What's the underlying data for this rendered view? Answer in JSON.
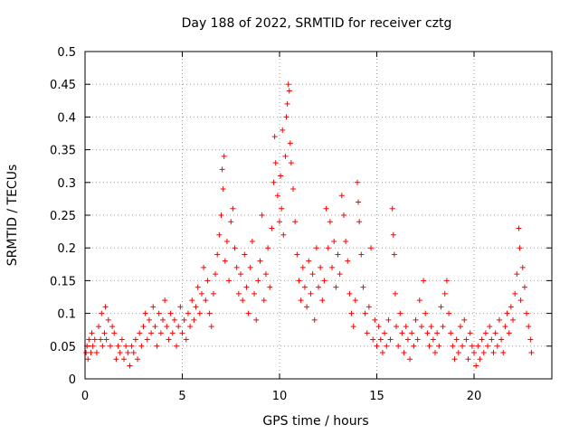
{
  "chart_data": {
    "type": "scatter",
    "title": "Day 188 of 2022, SRMTID for receiver cztg",
    "xlabel": "GPS time / hours",
    "ylabel": "SRMTID / TECUs",
    "xlim": [
      0,
      24
    ],
    "ylim": [
      0,
      0.5
    ],
    "xticks": [
      0,
      5,
      10,
      15,
      20
    ],
    "yticks": [
      0,
      0.05,
      0.1,
      0.15,
      0.2,
      0.25,
      0.3,
      0.35,
      0.4,
      0.45,
      0.5
    ],
    "ytick_labels": [
      "0",
      "0.05",
      "0.1",
      "0.15",
      "0.2",
      "0.25",
      "0.3",
      "0.35",
      "0.4",
      "0.45",
      "0.5"
    ],
    "grid": true,
    "marker": "+",
    "color": "#ff0000",
    "series": [
      {
        "name": "SRMTID",
        "points": [
          [
            0.05,
            0.04
          ],
          [
            0.1,
            0.05
          ],
          [
            0.15,
            0.03
          ],
          [
            0.2,
            0.06
          ],
          [
            0.3,
            0.04
          ],
          [
            0.35,
            0.07
          ],
          [
            0.4,
            0.05
          ],
          [
            0.5,
            0.06
          ],
          [
            0.6,
            0.04
          ],
          [
            0.7,
            0.08
          ],
          [
            0.8,
            0.06
          ],
          [
            0.85,
            0.1
          ],
          [
            0.9,
            0.05
          ],
          [
            1.0,
            0.07
          ],
          [
            1.05,
            0.11
          ],
          [
            1.1,
            0.06
          ],
          [
            1.2,
            0.09
          ],
          [
            1.3,
            0.05
          ],
          [
            1.4,
            0.08
          ],
          [
            1.5,
            0.07
          ],
          [
            1.6,
            0.03
          ],
          [
            1.7,
            0.05
          ],
          [
            1.8,
            0.04
          ],
          [
            1.9,
            0.06
          ],
          [
            2.0,
            0.03
          ],
          [
            2.1,
            0.05
          ],
          [
            2.2,
            0.04
          ],
          [
            2.3,
            0.02
          ],
          [
            2.4,
            0.05
          ],
          [
            2.5,
            0.04
          ],
          [
            2.6,
            0.06
          ],
          [
            2.7,
            0.03
          ],
          [
            2.8,
            0.07
          ],
          [
            2.9,
            0.05
          ],
          [
            3.0,
            0.08
          ],
          [
            3.1,
            0.1
          ],
          [
            3.2,
            0.06
          ],
          [
            3.3,
            0.09
          ],
          [
            3.4,
            0.07
          ],
          [
            3.5,
            0.11
          ],
          [
            3.6,
            0.08
          ],
          [
            3.7,
            0.05
          ],
          [
            3.8,
            0.1
          ],
          [
            3.9,
            0.07
          ],
          [
            4.0,
            0.09
          ],
          [
            4.1,
            0.12
          ],
          [
            4.2,
            0.08
          ],
          [
            4.3,
            0.06
          ],
          [
            4.4,
            0.1
          ],
          [
            4.5,
            0.07
          ],
          [
            4.6,
            0.09
          ],
          [
            4.7,
            0.05
          ],
          [
            4.8,
            0.08
          ],
          [
            4.9,
            0.11
          ],
          [
            5.0,
            0.07
          ],
          [
            5.1,
            0.09
          ],
          [
            5.2,
            0.06
          ],
          [
            5.3,
            0.1
          ],
          [
            5.4,
            0.08
          ],
          [
            5.5,
            0.12
          ],
          [
            5.6,
            0.09
          ],
          [
            5.7,
            0.11
          ],
          [
            5.8,
            0.14
          ],
          [
            5.9,
            0.1
          ],
          [
            6.0,
            0.13
          ],
          [
            6.1,
            0.17
          ],
          [
            6.2,
            0.12
          ],
          [
            6.3,
            0.15
          ],
          [
            6.4,
            0.1
          ],
          [
            6.5,
            0.08
          ],
          [
            6.6,
            0.13
          ],
          [
            6.7,
            0.16
          ],
          [
            6.8,
            0.19
          ],
          [
            6.9,
            0.22
          ],
          [
            7.0,
            0.25
          ],
          [
            7.05,
            0.32
          ],
          [
            7.1,
            0.29
          ],
          [
            7.15,
            0.34
          ],
          [
            7.2,
            0.18
          ],
          [
            7.3,
            0.21
          ],
          [
            7.4,
            0.15
          ],
          [
            7.5,
            0.24
          ],
          [
            7.6,
            0.26
          ],
          [
            7.7,
            0.2
          ],
          [
            7.8,
            0.17
          ],
          [
            7.9,
            0.13
          ],
          [
            8.0,
            0.16
          ],
          [
            8.1,
            0.12
          ],
          [
            8.2,
            0.19
          ],
          [
            8.3,
            0.14
          ],
          [
            8.4,
            0.1
          ],
          [
            8.5,
            0.17
          ],
          [
            8.6,
            0.21
          ],
          [
            8.7,
            0.13
          ],
          [
            8.8,
            0.09
          ],
          [
            8.9,
            0.15
          ],
          [
            9.0,
            0.18
          ],
          [
            9.1,
            0.25
          ],
          [
            9.2,
            0.12
          ],
          [
            9.3,
            0.16
          ],
          [
            9.4,
            0.2
          ],
          [
            9.5,
            0.14
          ],
          [
            9.6,
            0.23
          ],
          [
            9.7,
            0.3
          ],
          [
            9.75,
            0.37
          ],
          [
            9.8,
            0.33
          ],
          [
            9.9,
            0.28
          ],
          [
            10.0,
            0.24
          ],
          [
            10.05,
            0.31
          ],
          [
            10.1,
            0.26
          ],
          [
            10.15,
            0.38
          ],
          [
            10.2,
            0.22
          ],
          [
            10.3,
            0.34
          ],
          [
            10.35,
            0.4
          ],
          [
            10.4,
            0.42
          ],
          [
            10.45,
            0.45
          ],
          [
            10.5,
            0.44
          ],
          [
            10.55,
            0.36
          ],
          [
            10.6,
            0.33
          ],
          [
            10.7,
            0.29
          ],
          [
            10.8,
            0.24
          ],
          [
            10.9,
            0.19
          ],
          [
            11.0,
            0.15
          ],
          [
            11.1,
            0.12
          ],
          [
            11.2,
            0.17
          ],
          [
            11.3,
            0.14
          ],
          [
            11.4,
            0.11
          ],
          [
            11.5,
            0.18
          ],
          [
            11.6,
            0.13
          ],
          [
            11.7,
            0.16
          ],
          [
            11.8,
            0.09
          ],
          [
            11.9,
            0.2
          ],
          [
            12.0,
            0.14
          ],
          [
            12.1,
            0.17
          ],
          [
            12.2,
            0.12
          ],
          [
            12.3,
            0.15
          ],
          [
            12.4,
            0.26
          ],
          [
            12.5,
            0.2
          ],
          [
            12.6,
            0.24
          ],
          [
            12.7,
            0.17
          ],
          [
            12.8,
            0.21
          ],
          [
            12.9,
            0.14
          ],
          [
            13.0,
            0.19
          ],
          [
            13.1,
            0.16
          ],
          [
            13.2,
            0.28
          ],
          [
            13.3,
            0.25
          ],
          [
            13.4,
            0.21
          ],
          [
            13.5,
            0.18
          ],
          [
            13.6,
            0.13
          ],
          [
            13.7,
            0.1
          ],
          [
            13.8,
            0.08
          ],
          [
            13.9,
            0.12
          ],
          [
            14.0,
            0.3
          ],
          [
            14.05,
            0.27
          ],
          [
            14.1,
            0.24
          ],
          [
            14.2,
            0.19
          ],
          [
            14.3,
            0.14
          ],
          [
            14.4,
            0.1
          ],
          [
            14.5,
            0.07
          ],
          [
            14.6,
            0.11
          ],
          [
            14.7,
            0.2
          ],
          [
            14.8,
            0.06
          ],
          [
            14.9,
            0.09
          ],
          [
            15.0,
            0.05
          ],
          [
            15.1,
            0.08
          ],
          [
            15.2,
            0.06
          ],
          [
            15.3,
            0.04
          ],
          [
            15.4,
            0.07
          ],
          [
            15.5,
            0.05
          ],
          [
            15.6,
            0.09
          ],
          [
            15.7,
            0.06
          ],
          [
            15.8,
            0.26
          ],
          [
            15.85,
            0.22
          ],
          [
            15.9,
            0.19
          ],
          [
            15.95,
            0.13
          ],
          [
            16.0,
            0.08
          ],
          [
            16.1,
            0.05
          ],
          [
            16.2,
            0.1
          ],
          [
            16.3,
            0.07
          ],
          [
            16.4,
            0.04
          ],
          [
            16.5,
            0.08
          ],
          [
            16.6,
            0.06
          ],
          [
            16.7,
            0.03
          ],
          [
            16.8,
            0.07
          ],
          [
            16.9,
            0.05
          ],
          [
            17.0,
            0.09
          ],
          [
            17.1,
            0.06
          ],
          [
            17.2,
            0.12
          ],
          [
            17.3,
            0.08
          ],
          [
            17.4,
            0.15
          ],
          [
            17.5,
            0.1
          ],
          [
            17.6,
            0.07
          ],
          [
            17.7,
            0.05
          ],
          [
            17.8,
            0.08
          ],
          [
            17.9,
            0.06
          ],
          [
            18.0,
            0.04
          ],
          [
            18.1,
            0.07
          ],
          [
            18.2,
            0.05
          ],
          [
            18.3,
            0.11
          ],
          [
            18.4,
            0.08
          ],
          [
            18.5,
            0.13
          ],
          [
            18.6,
            0.15
          ],
          [
            18.7,
            0.1
          ],
          [
            18.8,
            0.07
          ],
          [
            18.9,
            0.05
          ],
          [
            19.0,
            0.03
          ],
          [
            19.1,
            0.06
          ],
          [
            19.2,
            0.04
          ],
          [
            19.3,
            0.08
          ],
          [
            19.4,
            0.05
          ],
          [
            19.5,
            0.09
          ],
          [
            19.6,
            0.06
          ],
          [
            19.7,
            0.03
          ],
          [
            19.8,
            0.07
          ],
          [
            19.9,
            0.05
          ],
          [
            20.0,
            0.04
          ],
          [
            20.1,
            0.02
          ],
          [
            20.2,
            0.05
          ],
          [
            20.3,
            0.03
          ],
          [
            20.4,
            0.06
          ],
          [
            20.5,
            0.04
          ],
          [
            20.6,
            0.07
          ],
          [
            20.7,
            0.05
          ],
          [
            20.8,
            0.08
          ],
          [
            20.9,
            0.06
          ],
          [
            21.0,
            0.04
          ],
          [
            21.1,
            0.07
          ],
          [
            21.2,
            0.05
          ],
          [
            21.3,
            0.09
          ],
          [
            21.4,
            0.06
          ],
          [
            21.5,
            0.04
          ],
          [
            21.6,
            0.08
          ],
          [
            21.7,
            0.1
          ],
          [
            21.8,
            0.07
          ],
          [
            21.9,
            0.11
          ],
          [
            22.0,
            0.09
          ],
          [
            22.1,
            0.13
          ],
          [
            22.2,
            0.16
          ],
          [
            22.3,
            0.23
          ],
          [
            22.35,
            0.2
          ],
          [
            22.4,
            0.12
          ],
          [
            22.5,
            0.17
          ],
          [
            22.6,
            0.14
          ],
          [
            22.7,
            0.1
          ],
          [
            22.8,
            0.08
          ],
          [
            22.9,
            0.06
          ],
          [
            22.95,
            0.04
          ]
        ]
      }
    ]
  }
}
